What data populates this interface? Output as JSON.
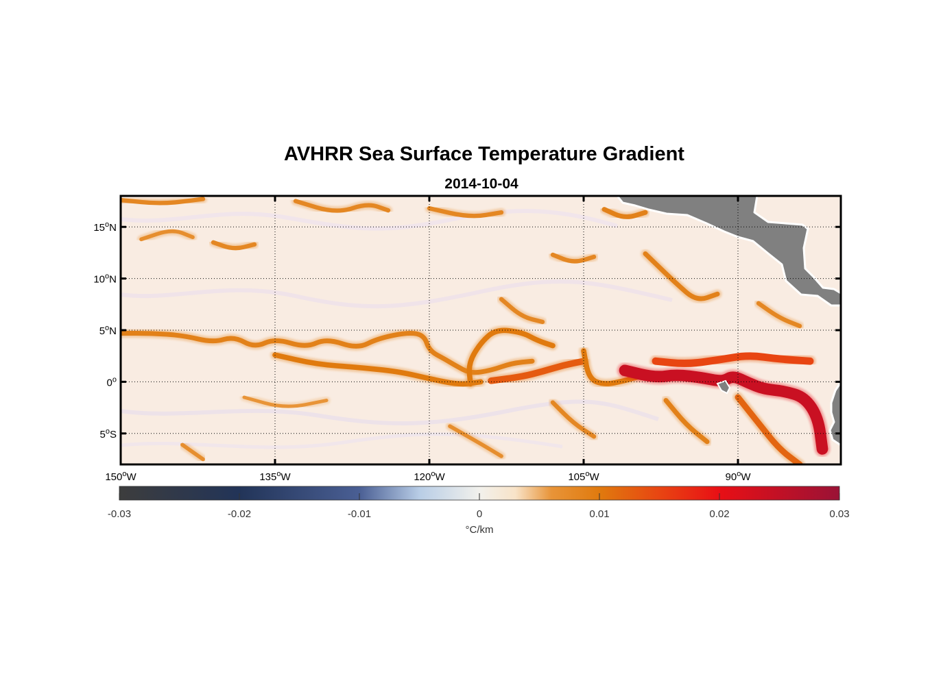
{
  "figure": {
    "title": "AVHRR Sea Surface Temperature Gradient",
    "subtitle": "2014-10-04"
  },
  "map": {
    "lon_range": [
      -150,
      -80
    ],
    "lat_range": [
      -8,
      18
    ],
    "grid": "dotted",
    "lon_ticks": [
      {
        "value": -150,
        "deg": "150",
        "hemi": "W"
      },
      {
        "value": -135,
        "deg": "135",
        "hemi": "W"
      },
      {
        "value": -120,
        "deg": "120",
        "hemi": "W"
      },
      {
        "value": -105,
        "deg": "105",
        "hemi": "W"
      },
      {
        "value": -90,
        "deg": "90",
        "hemi": "W"
      }
    ],
    "lat_ticks": [
      {
        "value": 15,
        "deg": "15",
        "hemi": "N"
      },
      {
        "value": 10,
        "deg": "10",
        "hemi": "N"
      },
      {
        "value": 5,
        "deg": "5",
        "hemi": "N"
      },
      {
        "value": 0,
        "deg": "0",
        "hemi": ""
      },
      {
        "value": -5,
        "deg": "5",
        "hemi": "S"
      }
    ],
    "land_color": "#808080",
    "ocean_background": "#f9ece2",
    "fronts": [
      {
        "level": 0.009,
        "points": [
          [
            -150,
            4.7
          ],
          [
            -147,
            4.7
          ],
          [
            -144,
            4.5
          ],
          [
            -141,
            3.8
          ],
          [
            -139,
            4.4
          ],
          [
            -137,
            3.3
          ],
          [
            -135,
            4.2
          ],
          [
            -132,
            3.3
          ],
          [
            -130,
            4.2
          ],
          [
            -127,
            3.2
          ],
          [
            -125,
            4.2
          ],
          [
            -122,
            4.8
          ],
          [
            -120.5,
            4.5
          ],
          [
            -120,
            3.0
          ],
          [
            -118.5,
            2.2
          ],
          [
            -117.5,
            1.6
          ],
          [
            -116,
            0.8
          ],
          [
            -114,
            1.1
          ],
          [
            -112,
            1.8
          ],
          [
            -110,
            2.0
          ]
        ]
      },
      {
        "level": 0.01,
        "points": [
          [
            -135,
            2.6
          ],
          [
            -131,
            1.7
          ],
          [
            -127,
            1.4
          ],
          [
            -123,
            1.0
          ],
          [
            -120,
            0.3
          ],
          [
            -117,
            -0.3
          ],
          [
            -115,
            0.0
          ]
        ]
      },
      {
        "level": 0.01,
        "points": [
          [
            -116,
            -0.2
          ],
          [
            -116.2,
            1.8
          ],
          [
            -115,
            3.8
          ],
          [
            -113.5,
            5.1
          ],
          [
            -111,
            4.8
          ],
          [
            -109.5,
            4.0
          ],
          [
            -108,
            3.5
          ]
        ]
      },
      {
        "level": 0.013,
        "points": [
          [
            -114,
            0.1
          ],
          [
            -111,
            0.5
          ],
          [
            -109,
            1.0
          ],
          [
            -107,
            1.6
          ],
          [
            -105,
            2.0
          ]
        ]
      },
      {
        "level": 0.01,
        "points": [
          [
            -105,
            3.0
          ],
          [
            -104.5,
            0.3
          ],
          [
            -103,
            -0.3
          ],
          [
            -101,
            0.1
          ],
          [
            -99,
            0.7
          ]
        ]
      },
      {
        "level": 0.024,
        "points": [
          [
            -101,
            1.1
          ],
          [
            -98,
            0.4
          ],
          [
            -96,
            0.7
          ],
          [
            -93.5,
            0.4
          ],
          [
            -91.5,
            0.0
          ],
          [
            -90.5,
            0.6
          ],
          [
            -89,
            -0.1
          ],
          [
            -87.5,
            -0.7
          ],
          [
            -85.5,
            -0.9
          ],
          [
            -83.5,
            -1.5
          ],
          [
            -82.2,
            -3.5
          ],
          [
            -81.8,
            -6.5
          ]
        ]
      },
      {
        "level": 0.015,
        "points": [
          [
            -98,
            2.0
          ],
          [
            -95,
            1.7
          ],
          [
            -92,
            2.1
          ],
          [
            -89,
            2.6
          ],
          [
            -86,
            2.2
          ],
          [
            -83,
            2.0
          ]
        ]
      },
      {
        "level": 0.012,
        "points": [
          [
            -90,
            -1.5
          ],
          [
            -88,
            -4.0
          ],
          [
            -86,
            -6.5
          ],
          [
            -84,
            -8.0
          ]
        ]
      },
      {
        "level": 0.009,
        "points": [
          [
            -103,
            16.7
          ],
          [
            -101,
            15.8
          ],
          [
            -99,
            16.4
          ]
        ]
      },
      {
        "level": 0.008,
        "points": [
          [
            -141,
            13.5
          ],
          [
            -139,
            12.8
          ],
          [
            -137,
            13.3
          ]
        ]
      },
      {
        "level": 0.008,
        "points": [
          [
            -133,
            17.5
          ],
          [
            -129,
            16.3
          ],
          [
            -126,
            17.3
          ],
          [
            -124,
            16.6
          ]
        ]
      },
      {
        "level": 0.008,
        "points": [
          [
            -108,
            12.3
          ],
          [
            -106,
            11.5
          ],
          [
            -104,
            12.1
          ]
        ]
      },
      {
        "level": 0.009,
        "points": [
          [
            -99,
            12.4
          ],
          [
            -96,
            9.5
          ],
          [
            -94,
            7.8
          ],
          [
            -92,
            8.5
          ]
        ]
      },
      {
        "level": 0.008,
        "points": [
          [
            -113,
            8.0
          ],
          [
            -111,
            6.3
          ],
          [
            -109,
            5.8
          ]
        ]
      },
      {
        "level": 0.008,
        "points": [
          [
            -150,
            17.6
          ],
          [
            -146,
            17.2
          ],
          [
            -142,
            17.7
          ]
        ]
      },
      {
        "level": 0.008,
        "points": [
          [
            -120,
            16.8
          ],
          [
            -116,
            15.9
          ],
          [
            -113,
            16.4
          ]
        ]
      },
      {
        "level": 0.007,
        "points": [
          [
            -148,
            13.8
          ],
          [
            -145,
            14.8
          ],
          [
            -143,
            14.0
          ]
        ]
      },
      {
        "level": 0.008,
        "points": [
          [
            -88,
            7.6
          ],
          [
            -86,
            6.2
          ],
          [
            -84,
            5.4
          ]
        ]
      },
      {
        "level": 0.009,
        "points": [
          [
            -97,
            -1.8
          ],
          [
            -95,
            -4.2
          ],
          [
            -93,
            -5.8
          ]
        ]
      },
      {
        "level": 0.008,
        "points": [
          [
            -108,
            -2.0
          ],
          [
            -106,
            -4.0
          ],
          [
            -104,
            -5.3
          ]
        ]
      },
      {
        "level": 0.006,
        "points": [
          [
            -138,
            -1.5
          ],
          [
            -134,
            -2.6
          ],
          [
            -130,
            -1.8
          ]
        ]
      },
      {
        "level": 0.007,
        "points": [
          [
            -118,
            -4.3
          ],
          [
            -115,
            -6.0
          ],
          [
            -113,
            -7.2
          ]
        ]
      },
      {
        "level": 0.007,
        "points": [
          [
            -144,
            -6.1
          ],
          [
            -142,
            -7.5
          ]
        ]
      }
    ]
  },
  "colorbar": {
    "label": "°C/km",
    "range": [
      -0.03,
      0.03
    ],
    "tick_labels": [
      "-0.03",
      "-0.02",
      "-0.01",
      "0",
      "0.01",
      "0.02",
      "0.03"
    ],
    "stops": [
      {
        "v": -0.03,
        "color": "#3d3d3d"
      },
      {
        "v": -0.02,
        "color": "#223458"
      },
      {
        "v": -0.01,
        "color": "#4a5f94"
      },
      {
        "v": -0.005,
        "color": "#b8cde6"
      },
      {
        "v": 0,
        "color": "#f2f1ec"
      },
      {
        "v": 0.003,
        "color": "#f8e3c8"
      },
      {
        "v": 0.006,
        "color": "#e89438"
      },
      {
        "v": 0.01,
        "color": "#e07a0e"
      },
      {
        "v": 0.015,
        "color": "#e84512"
      },
      {
        "v": 0.02,
        "color": "#e80f15"
      },
      {
        "v": 0.03,
        "color": "#9a1236"
      }
    ]
  }
}
